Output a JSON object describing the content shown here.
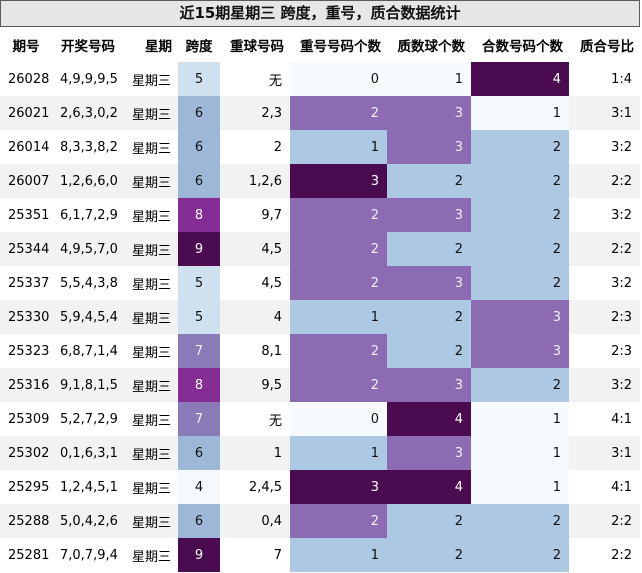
{
  "title": "近15期星期三 跨度，重号，质合数据统计",
  "headers": [
    "期号",
    "开奖号码",
    "星期",
    "跨度",
    "重球号码",
    "重号号码个数",
    "质数球个数",
    "合数号码个数",
    "质合号比"
  ],
  "rows": [
    {
      "issue": "26028",
      "numbers": "4,9,9,9,5",
      "weekday": "星期三",
      "span": "5",
      "repeat": "无",
      "repeat_count": "0",
      "prime_count": "1",
      "composite_count": "4",
      "ratio": "1:4"
    },
    {
      "issue": "26021",
      "numbers": "2,6,3,0,2",
      "weekday": "星期三",
      "span": "6",
      "repeat": "2,3",
      "repeat_count": "2",
      "prime_count": "3",
      "composite_count": "1",
      "ratio": "3:1"
    },
    {
      "issue": "26014",
      "numbers": "8,3,3,8,2",
      "weekday": "星期三",
      "span": "6",
      "repeat": "2",
      "repeat_count": "1",
      "prime_count": "3",
      "composite_count": "2",
      "ratio": "3:2"
    },
    {
      "issue": "26007",
      "numbers": "1,2,6,6,0",
      "weekday": "星期三",
      "span": "6",
      "repeat": "1,2,6",
      "repeat_count": "3",
      "prime_count": "2",
      "composite_count": "2",
      "ratio": "2:2"
    },
    {
      "issue": "25351",
      "numbers": "6,1,7,2,9",
      "weekday": "星期三",
      "span": "8",
      "repeat": "9,7",
      "repeat_count": "2",
      "prime_count": "3",
      "composite_count": "2",
      "ratio": "3:2"
    },
    {
      "issue": "25344",
      "numbers": "4,9,5,7,0",
      "weekday": "星期三",
      "span": "9",
      "repeat": "4,5",
      "repeat_count": "2",
      "prime_count": "2",
      "composite_count": "2",
      "ratio": "2:2"
    },
    {
      "issue": "25337",
      "numbers": "5,5,4,3,8",
      "weekday": "星期三",
      "span": "5",
      "repeat": "4,5",
      "repeat_count": "2",
      "prime_count": "3",
      "composite_count": "2",
      "ratio": "3:2"
    },
    {
      "issue": "25330",
      "numbers": "5,9,4,5,4",
      "weekday": "星期三",
      "span": "5",
      "repeat": "4",
      "repeat_count": "1",
      "prime_count": "2",
      "composite_count": "3",
      "ratio": "2:3"
    },
    {
      "issue": "25323",
      "numbers": "6,8,7,1,4",
      "weekday": "星期三",
      "span": "7",
      "repeat": "8,1",
      "repeat_count": "2",
      "prime_count": "2",
      "composite_count": "3",
      "ratio": "2:3"
    },
    {
      "issue": "25316",
      "numbers": "9,1,8,1,5",
      "weekday": "星期三",
      "span": "8",
      "repeat": "9,5",
      "repeat_count": "2",
      "prime_count": "3",
      "composite_count": "2",
      "ratio": "3:2"
    },
    {
      "issue": "25309",
      "numbers": "5,2,7,2,9",
      "weekday": "星期三",
      "span": "7",
      "repeat": "无",
      "repeat_count": "0",
      "prime_count": "4",
      "composite_count": "1",
      "ratio": "4:1"
    },
    {
      "issue": "25302",
      "numbers": "0,1,6,3,1",
      "weekday": "星期三",
      "span": "6",
      "repeat": "1",
      "repeat_count": "1",
      "prime_count": "3",
      "composite_count": "1",
      "ratio": "3:1"
    },
    {
      "issue": "25295",
      "numbers": "1,2,4,5,1",
      "weekday": "星期三",
      "span": "4",
      "repeat": "2,4,5",
      "repeat_count": "3",
      "prime_count": "4",
      "composite_count": "1",
      "ratio": "4:1"
    },
    {
      "issue": "25288",
      "numbers": "5,0,4,2,6",
      "weekday": "星期三",
      "span": "6",
      "repeat": "0,4",
      "repeat_count": "2",
      "prime_count": "2",
      "composite_count": "2",
      "ratio": "2:2"
    },
    {
      "issue": "25281",
      "numbers": "7,0,7,9,4",
      "weekday": "星期三",
      "span": "9",
      "repeat": "7",
      "repeat_count": "1",
      "prime_count": "2",
      "composite_count": "2",
      "ratio": "2:2"
    }
  ],
  "colors": {
    "title_bg": "#e6e6e6",
    "stripe_bg": "#f2f2f2",
    "heat_low": "#f7fbfd",
    "heat_mid": "#adc8e2",
    "heat_high": "#8c6bb3",
    "heat_max": "#4b0b51"
  }
}
